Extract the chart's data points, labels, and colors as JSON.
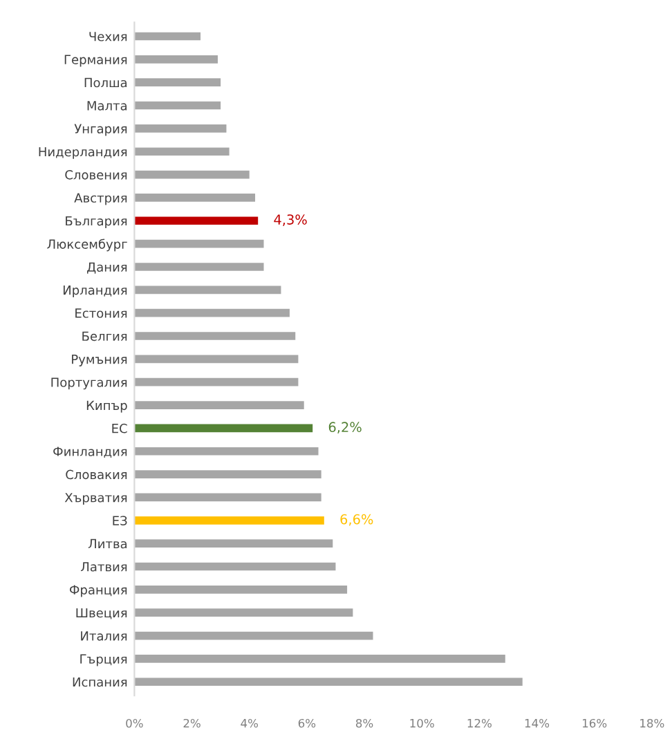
{
  "chart_data": {
    "type": "bar",
    "orientation": "horizontal",
    "categories": [
      "Чехия",
      "Германия",
      "Полша",
      "Малта",
      "Унгария",
      "Нидерландия",
      "Словения",
      "Австрия",
      "България",
      "Люксембург",
      "Дания",
      "Ирландия",
      "Естония",
      "Белгия",
      "Румъния",
      "Португалия",
      "Кипър",
      "ЕС",
      "Финландия",
      "Словакия",
      "Хърватия",
      "ЕЗ",
      "Литва",
      "Латвия",
      "Франция",
      "Швеция",
      "Италия",
      "Гърция",
      "Испания"
    ],
    "values": [
      2.3,
      2.9,
      3.0,
      3.0,
      3.2,
      3.3,
      4.0,
      4.2,
      4.3,
      4.5,
      4.5,
      5.1,
      5.4,
      5.6,
      5.7,
      5.7,
      5.9,
      6.2,
      6.4,
      6.5,
      6.5,
      6.6,
      6.9,
      7.0,
      7.4,
      7.6,
      8.3,
      12.9,
      13.5
    ],
    "colors": [
      "#a6a6a6",
      "#a6a6a6",
      "#a6a6a6",
      "#a6a6a6",
      "#a6a6a6",
      "#a6a6a6",
      "#a6a6a6",
      "#a6a6a6",
      "#c00000",
      "#a6a6a6",
      "#a6a6a6",
      "#a6a6a6",
      "#a6a6a6",
      "#a6a6a6",
      "#a6a6a6",
      "#a6a6a6",
      "#a6a6a6",
      "#548235",
      "#a6a6a6",
      "#a6a6a6",
      "#a6a6a6",
      "#ffc000",
      "#a6a6a6",
      "#a6a6a6",
      "#a6a6a6",
      "#a6a6a6",
      "#a6a6a6",
      "#a6a6a6",
      "#a6a6a6"
    ],
    "value_labels": [
      null,
      null,
      null,
      null,
      null,
      null,
      null,
      null,
      "4,3%",
      null,
      null,
      null,
      null,
      null,
      null,
      null,
      null,
      "6,2%",
      null,
      null,
      null,
      "6,6%",
      null,
      null,
      null,
      null,
      null,
      null,
      null
    ],
    "xlim": [
      0,
      18
    ],
    "xticks": [
      {
        "value": 0,
        "label": "0%"
      },
      {
        "value": 2,
        "label": "2%"
      },
      {
        "value": 4,
        "label": "4%"
      },
      {
        "value": 6,
        "label": "6%"
      },
      {
        "value": 8,
        "label": "8%"
      },
      {
        "value": 10,
        "label": "10%"
      },
      {
        "value": 12,
        "label": "12%"
      },
      {
        "value": 14,
        "label": "14%"
      },
      {
        "value": 16,
        "label": "16%"
      },
      {
        "value": 18,
        "label": "18%"
      }
    ],
    "grid": false,
    "legend": false
  }
}
